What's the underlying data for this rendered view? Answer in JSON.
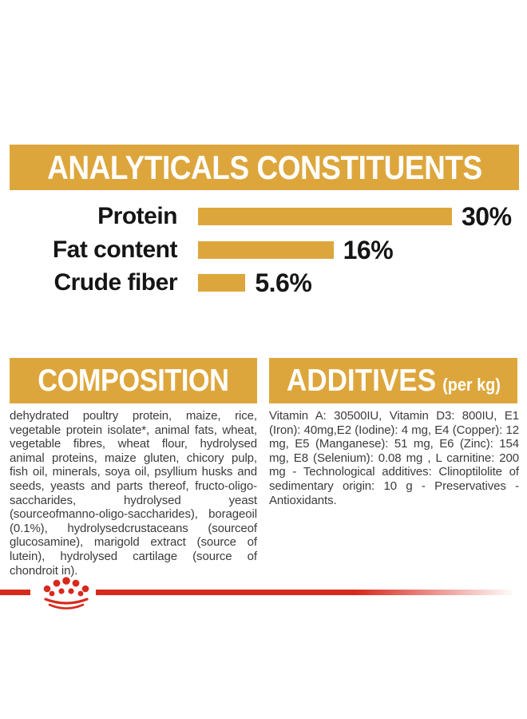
{
  "colors": {
    "gold": "#DDA63C",
    "red": "#D8291D",
    "body_text": "#3B3B3B",
    "heading_text": "#FFFFFF",
    "label_text": "#151515",
    "page_bg": "#FFFFFF"
  },
  "analyticals": {
    "title": "ANALYTICALS CONSTITUENTS",
    "rows": [
      {
        "label": "Protein",
        "value": 30,
        "display": "30%"
      },
      {
        "label": "Fat content",
        "value": 16,
        "display": "16%"
      },
      {
        "label": "Crude fiber",
        "value": 5.6,
        "display": "5.6%"
      }
    ]
  },
  "chart_data": {
    "type": "bar",
    "orientation": "horizontal",
    "title": "ANALYTICALS CONSTITUENTS",
    "categories": [
      "Protein",
      "Fat content",
      "Crude fiber"
    ],
    "values": [
      30,
      16,
      5.6
    ],
    "value_labels": [
      "30%",
      "16%",
      "5.6%"
    ],
    "unit": "%",
    "xlim": [
      0,
      30
    ],
    "grid": false,
    "legend": false,
    "bar_color": "#DDA63C"
  },
  "composition": {
    "title": "COMPOSITION",
    "body": "dehydrated poultry protein, maize, rice, vegetable protein isolate*, animal fats, wheat, vegetable fibres, wheat flour, hydrolysed animal proteins, maize gluten, chicory pulp, fish oil, minerals, soya oil, psyllium husks and seeds, yeasts and parts thereof, fructo-oligo-saccharides, hydrolysed yeast (sourceofmanno-oligo-saccharides), borageoil (0.1%), hydrolysedcrustaceans (sourceof glucosamine), marigold extract (source of lutein), hydrolysed cartilage (source of chondroit in)."
  },
  "additives": {
    "title": "ADDITIVES",
    "unit": "(per kg)",
    "body": "Vitamin A: 30500IU, Vitamin D3: 800IU, E1 (Iron): 40mg,E2 (Iodine): 4 mg, E4 (Copper): 12 mg, E5 (Manganese): 51 mg, E6 (Zinc): 154 mg, E8 (Selenium): 0.08 mg , L carnitine: 200 mg - Technological additives: Clinoptilolite of sedimentary origin: 10 g - Preservatives - Antioxidants."
  },
  "footer": {
    "brand_logo": "royal-canin-crown"
  }
}
